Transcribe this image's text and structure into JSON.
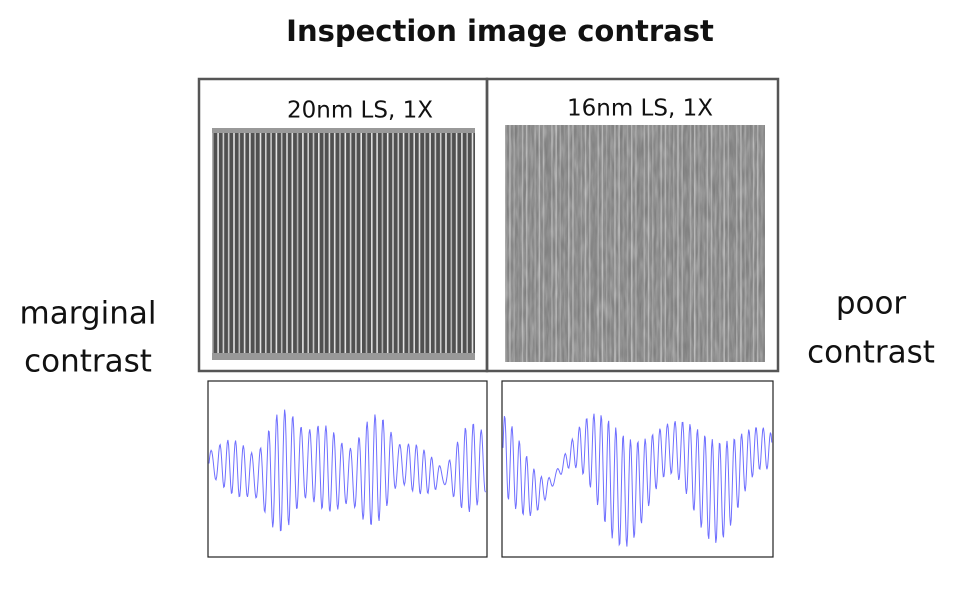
{
  "title": "Inspection image contrast",
  "panels": [
    {
      "label": "20nm LS, 1X"
    },
    {
      "label": "16nm LS, 1X"
    }
  ],
  "side_labels": {
    "left": [
      "marginal",
      "contrast"
    ],
    "right": [
      "poor",
      "contrast"
    ]
  }
}
